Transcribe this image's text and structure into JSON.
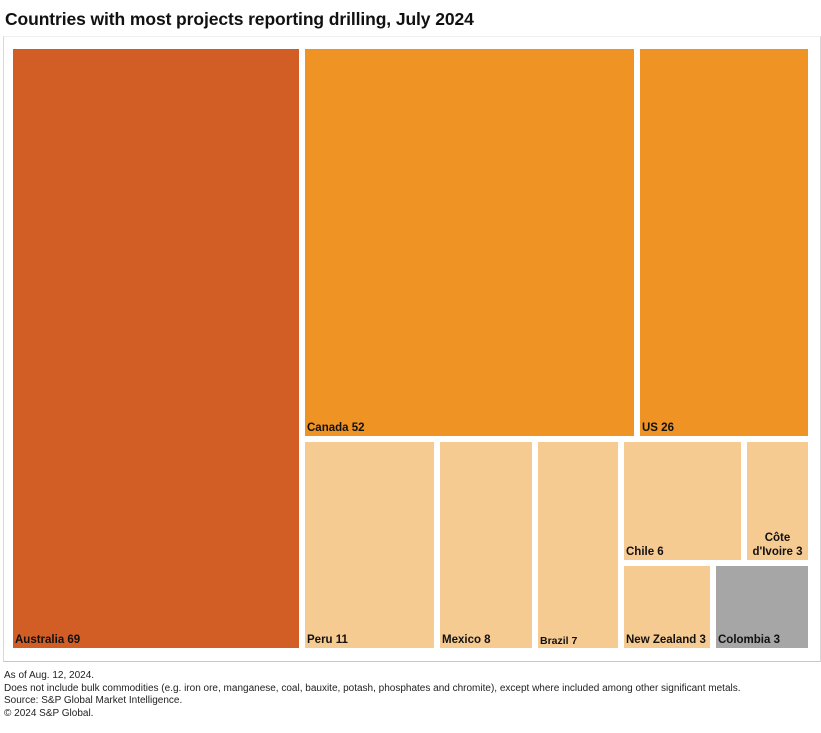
{
  "chart_data": {
    "type": "treemap",
    "title": "Countries with most projects reporting drilling, July 2024",
    "items": [
      {
        "name": "Australia",
        "value": 69,
        "label": "Australia 69",
        "color": "#d35e25",
        "group": "top"
      },
      {
        "name": "Canada",
        "value": 52,
        "label": "Canada 52",
        "color": "#ef9325",
        "group": "second"
      },
      {
        "name": "US",
        "value": 26,
        "label": "US 26",
        "color": "#ef9325",
        "group": "second"
      },
      {
        "name": "Peru",
        "value": 11,
        "label": "Peru 11",
        "color": "#f6cb92",
        "group": "other"
      },
      {
        "name": "Mexico",
        "value": 8,
        "label": "Mexico 8",
        "color": "#f6cb92",
        "group": "other"
      },
      {
        "name": "Brazil",
        "value": 7,
        "label": "Brazil 7",
        "color": "#f6cb92",
        "group": "other"
      },
      {
        "name": "Chile",
        "value": 6,
        "label": "Chile 6",
        "color": "#f6cb92",
        "group": "other"
      },
      {
        "name": "Côte d'Ivoire",
        "value": 3,
        "label": "Côte d'Ivoire 3",
        "label_lines": [
          "Côte",
          "d'Ivoire 3"
        ],
        "color": "#f6cb92",
        "group": "other"
      },
      {
        "name": "New Zealand",
        "value": 3,
        "label": "New Zealand 3",
        "color": "#f6cb92",
        "group": "other"
      },
      {
        "name": "Colombia",
        "value": 3,
        "label": "Colombia 3",
        "color": "#a6a6a6",
        "group": "gray"
      }
    ],
    "legend": "none"
  },
  "footnotes": {
    "as_of": "As of Aug. 12, 2024.",
    "exclusion": "Does not include bulk commodities (e.g. iron ore, manganese, coal, bauxite, potash, phosphates and chromite), except where included among other significant metals.",
    "source": "Source: S&P Global Market Intelligence.",
    "copyright": "© 2024 S&P Global."
  }
}
